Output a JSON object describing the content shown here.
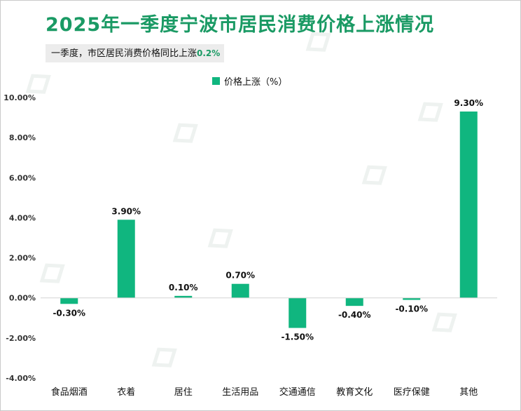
{
  "title": "2025年一季度宁波市居民消费价格上涨情况",
  "subtitle": {
    "text": "一季度，市区居民消费价格同比上涨",
    "highlight": "0.2%"
  },
  "colors": {
    "bar": "#10b67f",
    "title": "#1a9a64"
  },
  "chart_data": {
    "type": "bar",
    "title": "2025年一季度宁波市居民消费价格上涨情况",
    "legend": "价格上涨（%）",
    "legend_position": "top-center",
    "categories": [
      "食品烟酒",
      "衣着",
      "居住",
      "生活用品",
      "交通通信",
      "教育文化",
      "医疗保健",
      "其他"
    ],
    "values": [
      -0.3,
      3.9,
      0.1,
      0.7,
      -1.5,
      -0.4,
      -0.1,
      9.3
    ],
    "value_labels": [
      "-0.30%",
      "3.90%",
      "0.10%",
      "0.70%",
      "-1.50%",
      "-0.40%",
      "-0.10%",
      "9.30%"
    ],
    "ylim": [
      -4,
      10
    ],
    "yticks": [
      -4,
      -2,
      0,
      2,
      4,
      6,
      8,
      10
    ],
    "ytick_labels": [
      "-4.00%",
      "-2.00%",
      "0.00%",
      "2.00%",
      "4.00%",
      "6.00%",
      "8.00%",
      "10.00%"
    ],
    "grid": false,
    "xlabel": "",
    "ylabel": ""
  }
}
